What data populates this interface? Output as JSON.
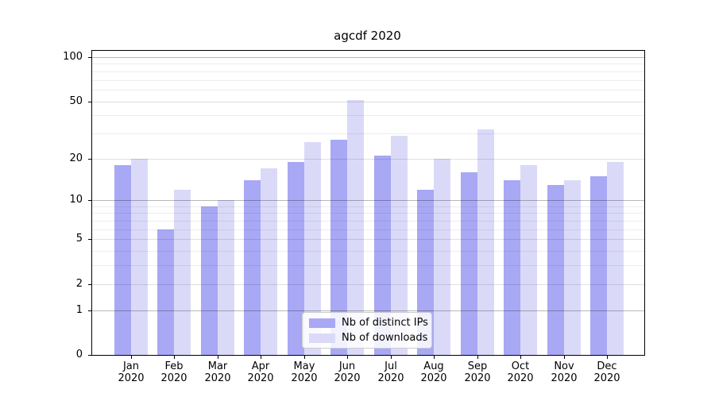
{
  "chart_data": {
    "type": "bar",
    "title": "agcdf 2020",
    "yscale": "log1p",
    "categories": [
      "Jan",
      "Feb",
      "Mar",
      "Apr",
      "May",
      "Jun",
      "Jul",
      "Aug",
      "Sep",
      "Oct",
      "Nov",
      "Dec"
    ],
    "category_year": "2020",
    "series": [
      {
        "name": "Nb of distinct IPs",
        "color": "#a8a8f5",
        "values": [
          18,
          6,
          9,
          14,
          19,
          27,
          21,
          12,
          16,
          14,
          13,
          15
        ]
      },
      {
        "name": "Nb of downloads",
        "color": "#dadaf8",
        "values": [
          20,
          12,
          10,
          17,
          26,
          51,
          29,
          20,
          32,
          18,
          14,
          19
        ]
      }
    ],
    "yticks": [
      0,
      1,
      2,
      5,
      10,
      20,
      50,
      100
    ],
    "ylim": [
      0,
      110
    ],
    "legend_position": "lower center",
    "grid": {
      "strong_lines": [
        1,
        10,
        100
      ],
      "light_lines": [
        2,
        5,
        20,
        50
      ],
      "minor_lines": [
        3,
        4,
        6,
        7,
        8,
        9,
        30,
        40,
        60,
        70,
        80,
        90
      ],
      "strong_color": "rgba(0,0,0,0.28)",
      "light_color": "rgba(0,0,0,0.12)",
      "minor_color": "rgba(0,0,0,0.07)"
    }
  }
}
